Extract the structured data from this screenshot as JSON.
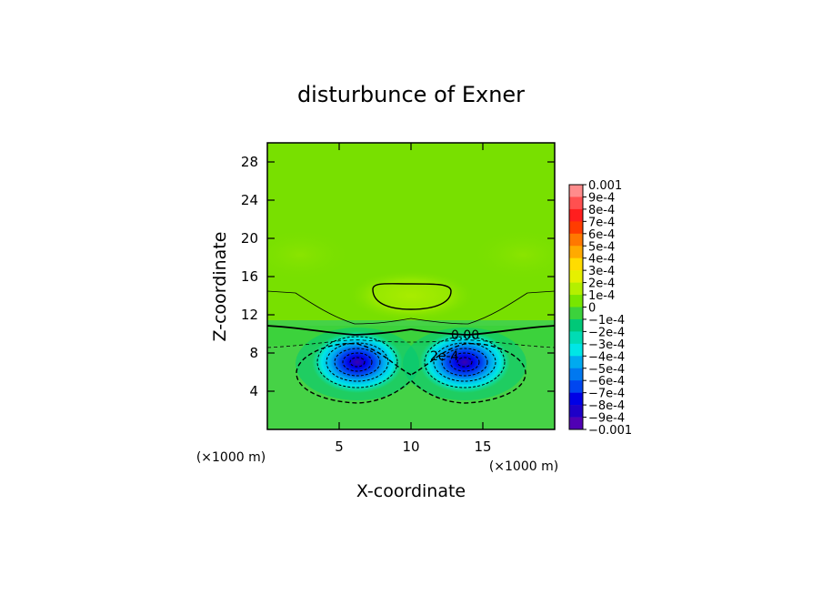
{
  "chart_data": {
    "type": "heatmap",
    "title": "disturbunce of Exner",
    "xlabel": "X-coordinate",
    "ylabel": "Z-coordinate",
    "xlim": [
      0,
      20
    ],
    "ylim": [
      0,
      30
    ],
    "x_ticks": [
      5,
      10,
      15
    ],
    "y_ticks": [
      4,
      8,
      12,
      16,
      20,
      24,
      28
    ],
    "x_unit": "(×1000 m)",
    "y_unit": "(×1000 m)",
    "grid": false,
    "colorbar": {
      "placement": "right",
      "labels": [
        "0.001",
        "9e-4",
        "8e-4",
        "7e-4",
        "6e-4",
        "5e-4",
        "4e-4",
        "3e-4",
        "2e-4",
        "1e-4",
        "0",
        "−1e-4",
        "−2e-4",
        "−3e-4",
        "−4e-4",
        "−5e-4",
        "−6e-4",
        "−7e-4",
        "−8e-4",
        "−9e-4",
        "−0.001"
      ],
      "colors": [
        "#ff8c8c",
        "#ff5050",
        "#ff1e1e",
        "#ff3c00",
        "#ff7800",
        "#ffaa00",
        "#ffdc00",
        "#e6f000",
        "#b4f000",
        "#78e600",
        "#3cd23c",
        "#00c878",
        "#00dcb4",
        "#00e6e6",
        "#00aaf0",
        "#0078f0",
        "#0046f0",
        "#0000e6",
        "#1e00c8",
        "#5000b4"
      ]
    },
    "contour_labels": [
      "0.00",
      "2e-4"
    ],
    "features": [
      {
        "name": "negative minimum",
        "x": 6.3,
        "z": 7.0,
        "value": -0.001
      },
      {
        "name": "negative minimum",
        "x": 13.7,
        "z": 7.0,
        "value": -0.001
      },
      {
        "name": "positive maximum",
        "x": 9.9,
        "z": 14.0,
        "value": 0.0002
      }
    ]
  }
}
